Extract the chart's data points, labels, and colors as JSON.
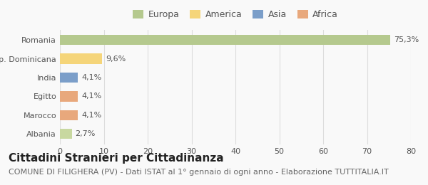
{
  "categories": [
    "Romania",
    "Rep. Dominicana",
    "India",
    "Egitto",
    "Marocco",
    "Albania"
  ],
  "values": [
    75.3,
    9.6,
    4.1,
    4.1,
    4.1,
    2.7
  ],
  "labels": [
    "75,3%",
    "9,6%",
    "4,1%",
    "4,1%",
    "4,1%",
    "2,7%"
  ],
  "colors": [
    "#b5c98e",
    "#f5d57a",
    "#7b9ec9",
    "#e8a87c",
    "#e8a87c",
    "#c8d8a0"
  ],
  "legend_labels": [
    "Europa",
    "America",
    "Asia",
    "Africa"
  ],
  "legend_colors": [
    "#b5c98e",
    "#f5d57a",
    "#7b9ec9",
    "#e8a87c"
  ],
  "xlim": [
    0,
    80
  ],
  "xticks": [
    0,
    10,
    20,
    30,
    40,
    50,
    60,
    70,
    80
  ],
  "title": "Cittadini Stranieri per Cittadinanza",
  "subtitle": "COMUNE DI FILIGHERA (PV) - Dati ISTAT al 1° gennaio di ogni anno - Elaborazione TUTTITALIA.IT",
  "background_color": "#f9f9f9",
  "grid_color": "#dddddd",
  "bar_height": 0.55,
  "title_fontsize": 11,
  "subtitle_fontsize": 8,
  "label_fontsize": 8,
  "tick_fontsize": 8,
  "legend_fontsize": 9
}
